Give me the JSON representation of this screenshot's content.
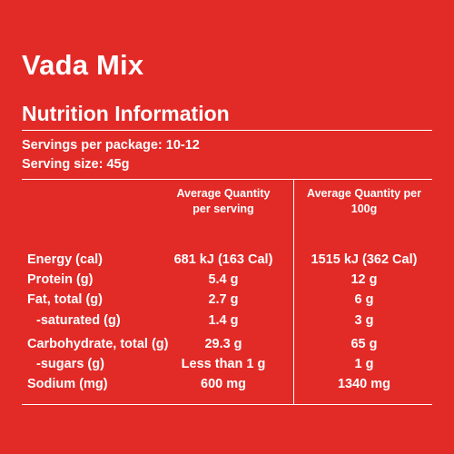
{
  "title": "Vada Mix",
  "subtitle": "Nutrition Information",
  "servings_per_package": "Servings per package: 10-12",
  "serving_size": "Serving size: 45g",
  "table": {
    "headers": {
      "per_serving": "Average Quantity\nper serving",
      "per_100g": "Average Quantity per\n100g"
    },
    "rows": [
      {
        "label": "Energy (cal)",
        "per_serving": "681 kJ (163 Cal)",
        "per_100g": "1515 kJ (362 Cal)"
      },
      {
        "label": "Protein (g)",
        "per_serving": "5.4 g",
        "per_100g": "12 g"
      },
      {
        "label": "Fat, total (g)",
        "per_serving": "2.7 g",
        "per_100g": "6 g"
      },
      {
        "label": "-saturated (g)",
        "per_serving": "1.4 g",
        "per_100g": "3 g"
      },
      {
        "label": "Carbohydrate, total (g)",
        "per_serving": "29.3 g",
        "per_100g": "65 g"
      },
      {
        "label": "-sugars (g)",
        "per_serving": "Less than 1 g",
        "per_100g": "1 g"
      },
      {
        "label": "Sodium (mg)",
        "per_serving": "600 mg",
        "per_100g": "1340 mg"
      }
    ]
  },
  "colors": {
    "background": "#e22a27",
    "text": "#ffffff"
  }
}
